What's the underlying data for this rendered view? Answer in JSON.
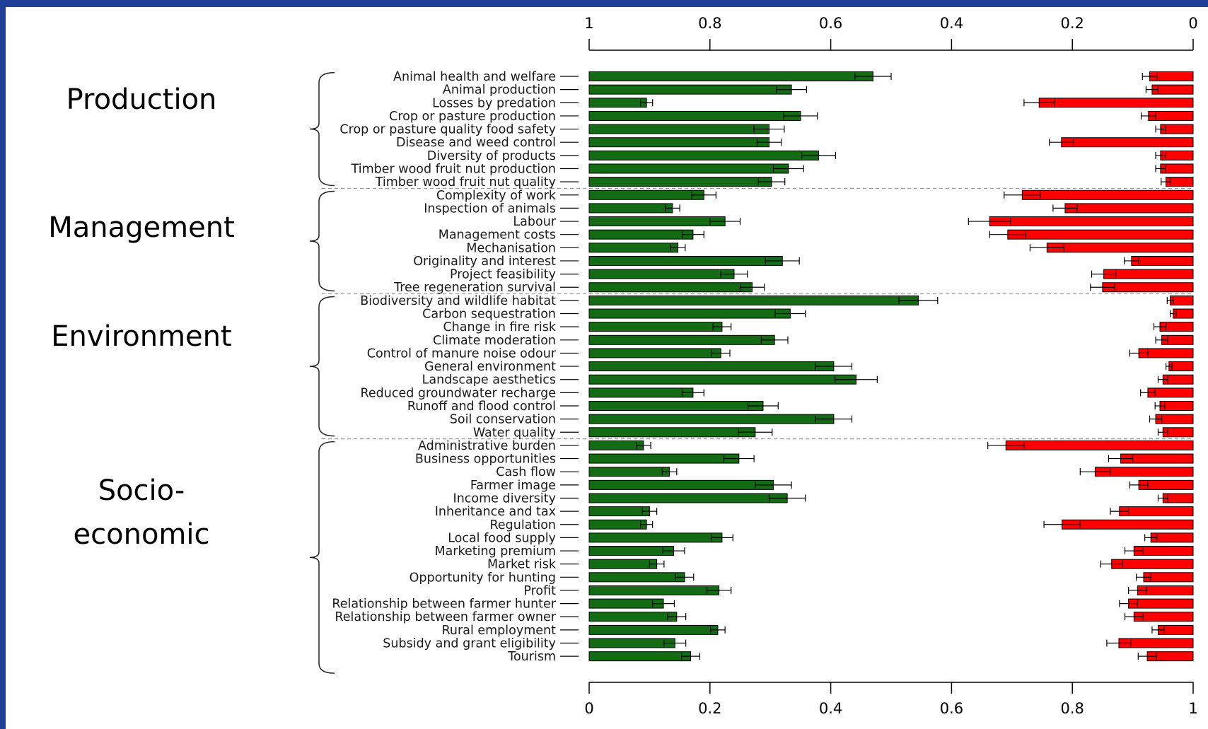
{
  "colors": {
    "slide_border": "#1f3f99",
    "importance_bar": "#136b13",
    "negative_bar": "#ff0000",
    "axis": "#000000",
    "group_separator": "#999999"
  },
  "groups": [
    {
      "label": "Production",
      "first_index": 0,
      "last_index": 8
    },
    {
      "label": "Management",
      "first_index": 9,
      "last_index": 16
    },
    {
      "label": "Environment",
      "first_index": 17,
      "last_index": 27
    },
    {
      "label": "Socio-\neconomic",
      "first_index": 28,
      "last_index": 45
    }
  ],
  "chart_data": {
    "type": "bar",
    "orientation": "horizontal",
    "grid": false,
    "legend": "none",
    "categories": [
      "Animal health and welfare",
      "Animal production",
      "Losses by predation",
      "Crop or pasture production",
      "Crop or pasture quality food safety",
      "Disease and weed control",
      "Diversity of products",
      "Timber wood fruit nut production",
      "Timber wood fruit nut quality",
      "Complexity of work",
      "Inspection of animals",
      "Labour",
      "Management costs",
      "Mechanisation",
      "Originality and interest",
      "Project feasibility",
      "Tree regeneration survival",
      "Biodiversity and wildlife habitat",
      "Carbon sequestration",
      "Change in fire risk",
      "Climate moderation",
      "Control of manure noise odour",
      "General environment",
      "Landscape aesthetics",
      "Reduced groundwater recharge",
      "Runoff and flood control",
      "Soil conservation",
      "Water quality",
      "Administrative burden",
      "Business opportunities",
      "Cash flow",
      "Farmer image",
      "Income diversity",
      "Inheritance and tax",
      "Regulation",
      "Local food supply",
      "Marketing premium",
      "Market risk",
      "Opportunity for hunting",
      "Profit",
      "Relationship between farmer hunter",
      "Relationship between farmer owner",
      "Rural employment",
      "Subsidy and grant eligibility",
      "Tourism"
    ],
    "bottom_axis": {
      "ticks": [
        "0",
        "0.2",
        "0.4",
        "0.6",
        "0.8",
        "1"
      ],
      "range": [
        0,
        1
      ]
    },
    "top_axis": {
      "ticks": [
        "1",
        "0.8",
        "0.6",
        "0.4",
        "0.2",
        "0"
      ],
      "range": [
        1,
        0
      ],
      "reversed": true
    },
    "series": [
      {
        "color": "#136b13",
        "axis": "bottom",
        "values": [
          0.47,
          0.335,
          0.095,
          0.35,
          0.298,
          0.298,
          0.38,
          0.33,
          0.302,
          0.19,
          0.138,
          0.225,
          0.172,
          0.147,
          0.32,
          0.24,
          0.27,
          0.545,
          0.333,
          0.22,
          0.307,
          0.218,
          0.405,
          0.442,
          0.172,
          0.288,
          0.405,
          0.275,
          0.09,
          0.248,
          0.133,
          0.305,
          0.328,
          0.1,
          0.095,
          0.22,
          0.14,
          0.112,
          0.158,
          0.215,
          0.123,
          0.145,
          0.213,
          0.142,
          0.168
        ],
        "errors": [
          0.03,
          0.025,
          0.01,
          0.028,
          0.025,
          0.02,
          0.028,
          0.025,
          0.022,
          0.02,
          0.012,
          0.025,
          0.018,
          0.012,
          0.028,
          0.022,
          0.02,
          0.032,
          0.025,
          0.015,
          0.022,
          0.015,
          0.03,
          0.035,
          0.018,
          0.025,
          0.03,
          0.028,
          0.012,
          0.025,
          0.012,
          0.03,
          0.03,
          0.012,
          0.01,
          0.018,
          0.018,
          0.012,
          0.015,
          0.02,
          0.018,
          0.015,
          0.012,
          0.018,
          0.015
        ]
      },
      {
        "color": "#ff0000",
        "axis": "top",
        "values": [
          0.072,
          0.068,
          0.255,
          0.074,
          0.054,
          0.218,
          0.054,
          0.054,
          0.045,
          0.283,
          0.212,
          0.337,
          0.307,
          0.242,
          0.102,
          0.148,
          0.15,
          0.038,
          0.033,
          0.055,
          0.052,
          0.09,
          0.04,
          0.05,
          0.075,
          0.055,
          0.062,
          0.05,
          0.31,
          0.12,
          0.162,
          0.09,
          0.05,
          0.122,
          0.217,
          0.07,
          0.098,
          0.135,
          0.082,
          0.092,
          0.107,
          0.098,
          0.058,
          0.123,
          0.076
        ],
        "errors": [
          0.012,
          0.01,
          0.025,
          0.012,
          0.008,
          0.02,
          0.008,
          0.008,
          0.008,
          0.03,
          0.02,
          0.035,
          0.03,
          0.028,
          0.012,
          0.02,
          0.02,
          0.005,
          0.005,
          0.01,
          0.01,
          0.015,
          0.005,
          0.008,
          0.012,
          0.008,
          0.01,
          0.008,
          0.03,
          0.02,
          0.025,
          0.015,
          0.008,
          0.015,
          0.03,
          0.01,
          0.015,
          0.018,
          0.012,
          0.015,
          0.015,
          0.015,
          0.01,
          0.02,
          0.015
        ]
      }
    ]
  }
}
